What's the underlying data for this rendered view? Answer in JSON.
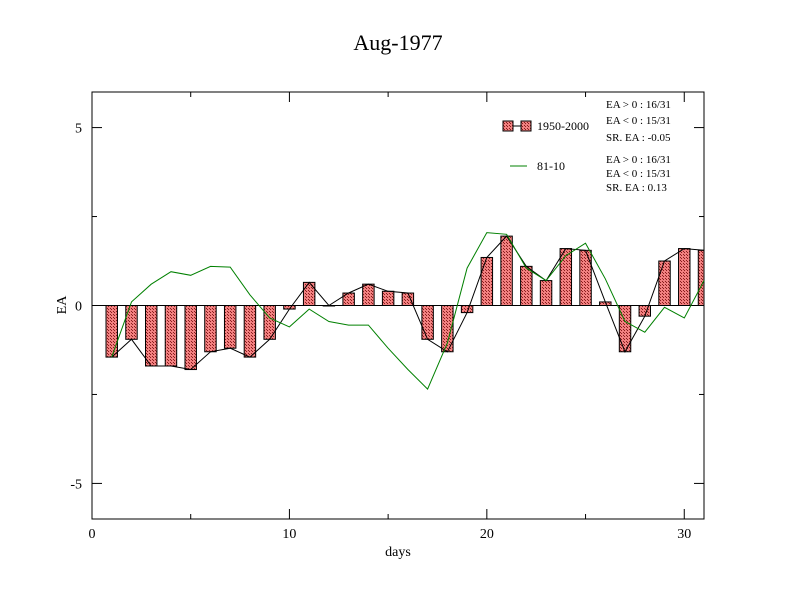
{
  "chart_data": {
    "type": "bar",
    "title": "Aug-1977",
    "xlabel": "days",
    "ylabel": "EA",
    "xlim": [
      0,
      31
    ],
    "ylim": [
      -6,
      6
    ],
    "x_ticks": [
      0,
      10,
      20,
      30
    ],
    "y_ticks": [
      5,
      0,
      -5
    ],
    "x_tick_labels": [
      "0",
      "10",
      "20",
      "30"
    ],
    "y_tick_labels": [
      "5",
      "0",
      "-5"
    ],
    "grid": false,
    "legend_position": "top-right",
    "x": [
      1,
      2,
      3,
      4,
      5,
      6,
      7,
      8,
      9,
      10,
      11,
      12,
      13,
      14,
      15,
      16,
      17,
      18,
      19,
      20,
      21,
      22,
      23,
      24,
      25,
      26,
      27,
      28,
      29,
      30,
      31
    ],
    "series": [
      {
        "name": "1950-2000",
        "kind": "bar+line",
        "bar_color": "#f28080",
        "line_color": "#000000",
        "values": [
          -1.45,
          -0.95,
          -1.7,
          -1.7,
          -1.8,
          -1.3,
          -1.2,
          -1.45,
          -0.95,
          -0.1,
          0.65,
          0.0,
          0.35,
          0.6,
          0.4,
          0.35,
          -0.95,
          -1.3,
          -0.2,
          1.35,
          1.95,
          1.1,
          0.7,
          1.6,
          1.55,
          0.1,
          -1.3,
          -0.3,
          1.25,
          1.6,
          1.55
        ]
      },
      {
        "name": "81-10",
        "kind": "line",
        "line_color": "#008000",
        "values": [
          -1.45,
          0.1,
          0.6,
          0.95,
          0.85,
          1.1,
          1.08,
          0.3,
          -0.35,
          -0.6,
          -0.1,
          -0.45,
          -0.55,
          -0.55,
          -1.2,
          -1.8,
          -2.35,
          -1.05,
          1.05,
          2.05,
          2.0,
          1.05,
          0.7,
          1.4,
          1.75,
          0.75,
          -0.45,
          -0.75,
          -0.05,
          -0.35,
          0.7
        ]
      }
    ],
    "stats": [
      [
        "EA > 0 : 16/31",
        "EA < 0 : 15/31",
        "SR. EA : -0.05"
      ],
      [
        "EA > 0 : 16/31",
        "EA < 0 : 15/31",
        "SR. EA :  0.13"
      ]
    ]
  }
}
